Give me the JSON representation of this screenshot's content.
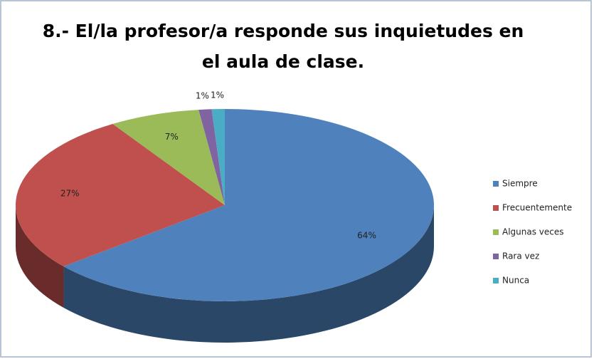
{
  "chart_data": {
    "type": "pie3d",
    "title": [
      "8.- El/la profesor/a   responde sus inquietudes en",
      "el aula de clase."
    ],
    "categories": [
      "Siempre",
      "Frecuentemente",
      "Algunas veces",
      "Rara vez",
      "Nunca"
    ],
    "values": [
      64,
      27,
      7,
      1,
      1
    ],
    "value_labels": [
      "64%",
      "27%",
      "7%",
      "1%",
      "1%"
    ],
    "colors": [
      "#4f81bd",
      "#c0504d",
      "#9bbb59",
      "#8064a2",
      "#4bacc6"
    ],
    "legend": "right"
  }
}
